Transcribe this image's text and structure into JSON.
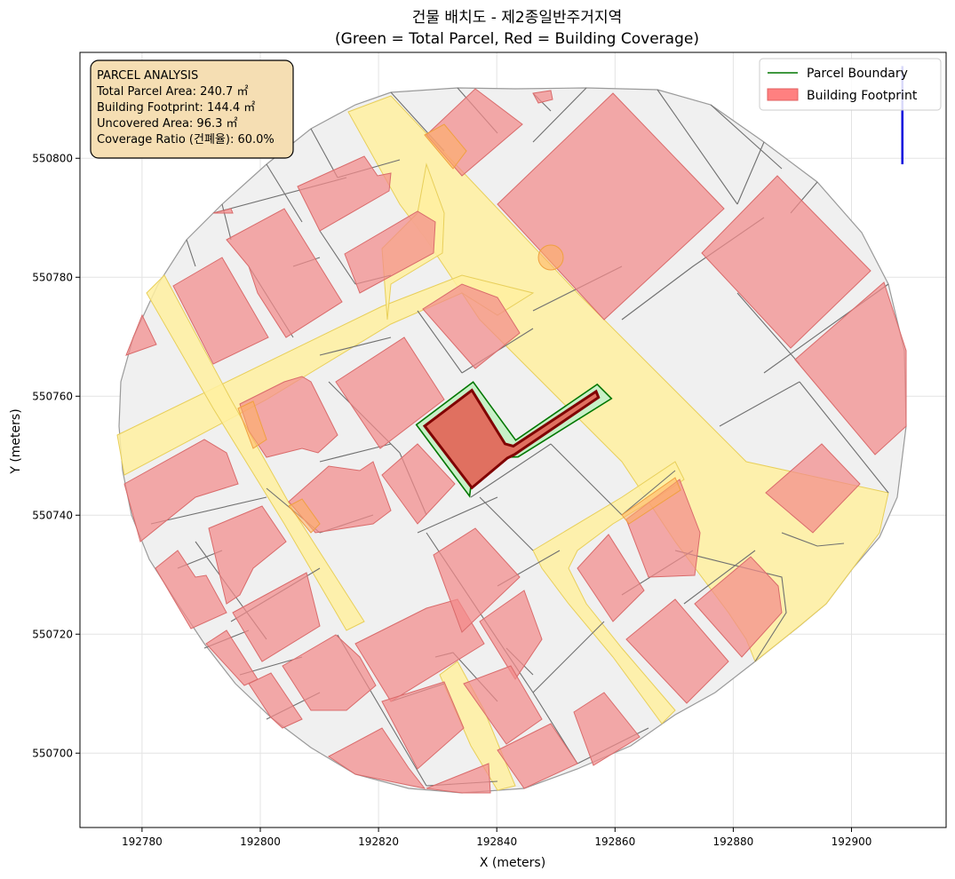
{
  "chart_data": {
    "type": "map",
    "title_line1": "건물 배치도 - 제2종일반주거지역",
    "title_line2": "(Green = Total Parcel, Red = Building Coverage)",
    "xlabel": "X (meters)",
    "ylabel": "Y (meters)",
    "xlim": [
      192769.5,
      192916.0
    ],
    "ylim": [
      550687.5,
      550817.8
    ],
    "x_ticks": [
      192780,
      192800,
      192820,
      192840,
      192860,
      192880,
      192900
    ],
    "y_ticks": [
      550700,
      550720,
      550740,
      550760,
      550780,
      550800
    ],
    "grid": true,
    "legend_position": "upper right",
    "legend": [
      {
        "label": "Parcel Boundary",
        "color": "#007700",
        "kind": "line"
      },
      {
        "label": "Building Footprint",
        "color": "#ff8080",
        "kind": "patch"
      }
    ],
    "info_box": {
      "heading": "PARCEL ANALYSIS",
      "lines": [
        "Total Parcel Area: 240.7 ㎡",
        "Building Footprint: 144.4 ㎡",
        "Uncovered Area: 96.3 ㎡",
        "Coverage Ratio (건폐율): 60.0%"
      ]
    },
    "target_parcel": {
      "total_area_m2": 240.7,
      "building_area_m2": 144.4,
      "uncovered_area_m2": 96.3,
      "coverage_ratio_pct": 60.0,
      "boundary": [
        [
          192826.4,
          550755.2
        ],
        [
          192836.0,
          550762.4
        ],
        [
          192843.2,
          550752.6
        ],
        [
          192857.0,
          550762.0
        ],
        [
          192859.4,
          550759.6
        ],
        [
          192843.6,
          550749.8
        ],
        [
          192836.2,
          550749.6
        ],
        [
          192835.4,
          550743.2
        ]
      ],
      "footprint": [
        [
          192827.8,
          550755.0
        ],
        [
          192835.8,
          550761.0
        ],
        [
          192841.4,
          550752.0
        ],
        [
          192842.8,
          550751.6
        ],
        [
          192856.8,
          550760.8
        ],
        [
          192857.2,
          550759.8
        ],
        [
          192843.0,
          550750.2
        ],
        [
          192841.8,
          550749.6
        ],
        [
          192835.8,
          550744.6
        ]
      ]
    },
    "north_arrow": {
      "x": 192908.6,
      "y_start": 550799.0,
      "y_end": 550815.5,
      "color": "#0000dd"
    },
    "colors": {
      "parcel_fill": "#c8f0c8",
      "parcel_edge": "#007700",
      "footprint_fill": "#e07060",
      "footprint_edge": "#800000",
      "building": "#f28b8b",
      "road": "#fff0a0",
      "lot": "#f0f0f0"
    }
  }
}
